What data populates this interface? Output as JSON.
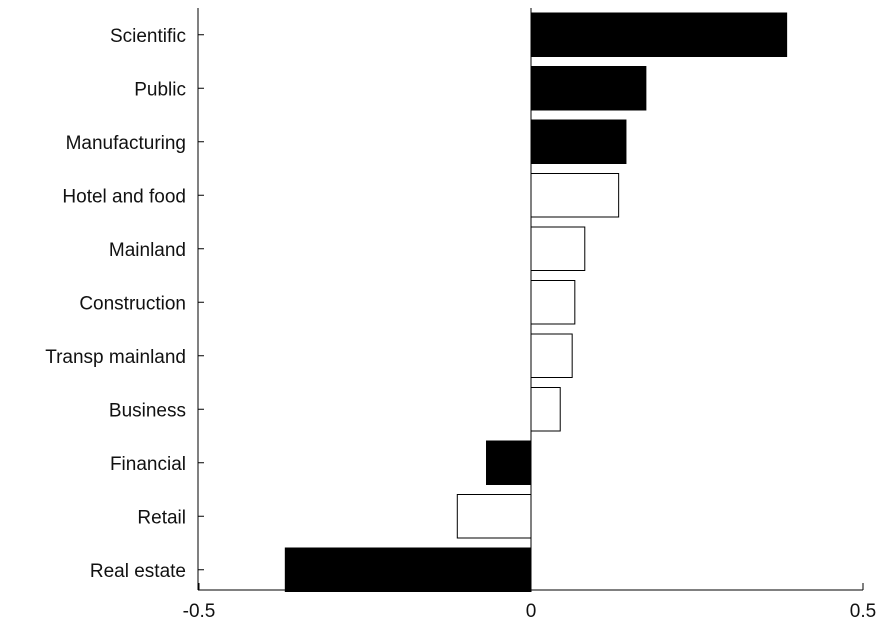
{
  "chart_data": {
    "type": "bar",
    "orientation": "horizontal",
    "categories": [
      "Scientific",
      "Public",
      "Manufacturing",
      "Hotel and food",
      "Mainland",
      "Construction",
      "Transp mainland",
      "Business",
      "Financial",
      "Retail",
      "Real estate"
    ],
    "values": [
      0.385,
      0.173,
      0.143,
      0.132,
      0.081,
      0.066,
      0.062,
      0.044,
      -0.067,
      -0.111,
      -0.37
    ],
    "fills": [
      "filled",
      "filled",
      "filled",
      "hollow",
      "hollow",
      "hollow",
      "hollow",
      "hollow",
      "filled",
      "hollow",
      "filled"
    ],
    "colors": {
      "filled": "#000000",
      "hollow": "#ffffff",
      "stroke": "#000000"
    },
    "xlim": [
      -0.5,
      0.5
    ],
    "xticks": [
      -0.5,
      0,
      0.5
    ],
    "xtick_labels": [
      "-0.5",
      "0",
      "0.5"
    ],
    "title": "",
    "xlabel": "",
    "ylabel": "",
    "grid": false,
    "legend": "none"
  }
}
